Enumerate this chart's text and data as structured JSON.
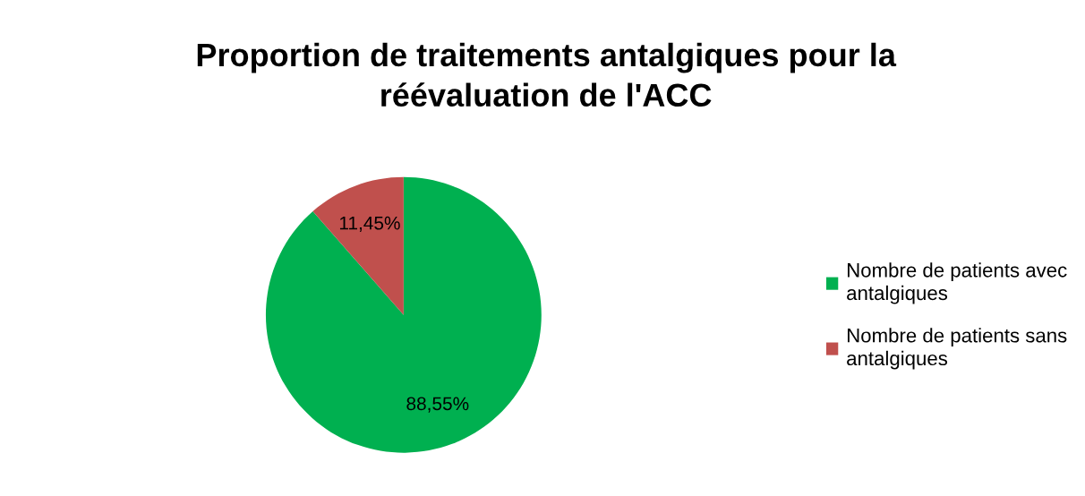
{
  "chart_data": {
    "type": "pie",
    "title": "Proportion de traitements antalgiques pour la\nréévaluation de l'ACC",
    "categories": [
      "Nombre de patients avec\nantalgiques",
      "Nombre de patients sans\nantalgiques"
    ],
    "values": [
      88.55,
      11.45
    ],
    "colors": [
      "#00b050",
      "#c0504d"
    ],
    "value_labels": [
      "88,55%",
      "11,45%"
    ],
    "legend": "right"
  }
}
